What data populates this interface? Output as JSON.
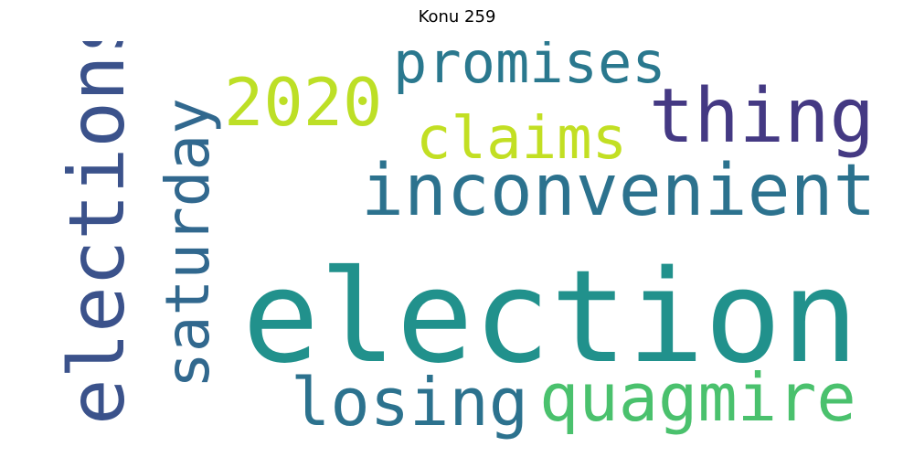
{
  "title": "Konu 259",
  "words": [
    {
      "text": "election",
      "color": "#21918c"
    },
    {
      "text": "elections",
      "color": "#3b528b"
    },
    {
      "text": "inconvenient",
      "color": "#2c728e"
    },
    {
      "text": "thing",
      "color": "#443983"
    },
    {
      "text": "quagmire",
      "color": "#4ac16d"
    },
    {
      "text": "losing",
      "color": "#2c728e"
    },
    {
      "text": "saturday",
      "color": "#31688e"
    },
    {
      "text": "2020",
      "color": "#bddf26"
    },
    {
      "text": "claims",
      "color": "#c2df23"
    },
    {
      "text": "promises",
      "color": "#2a788e"
    }
  ]
}
